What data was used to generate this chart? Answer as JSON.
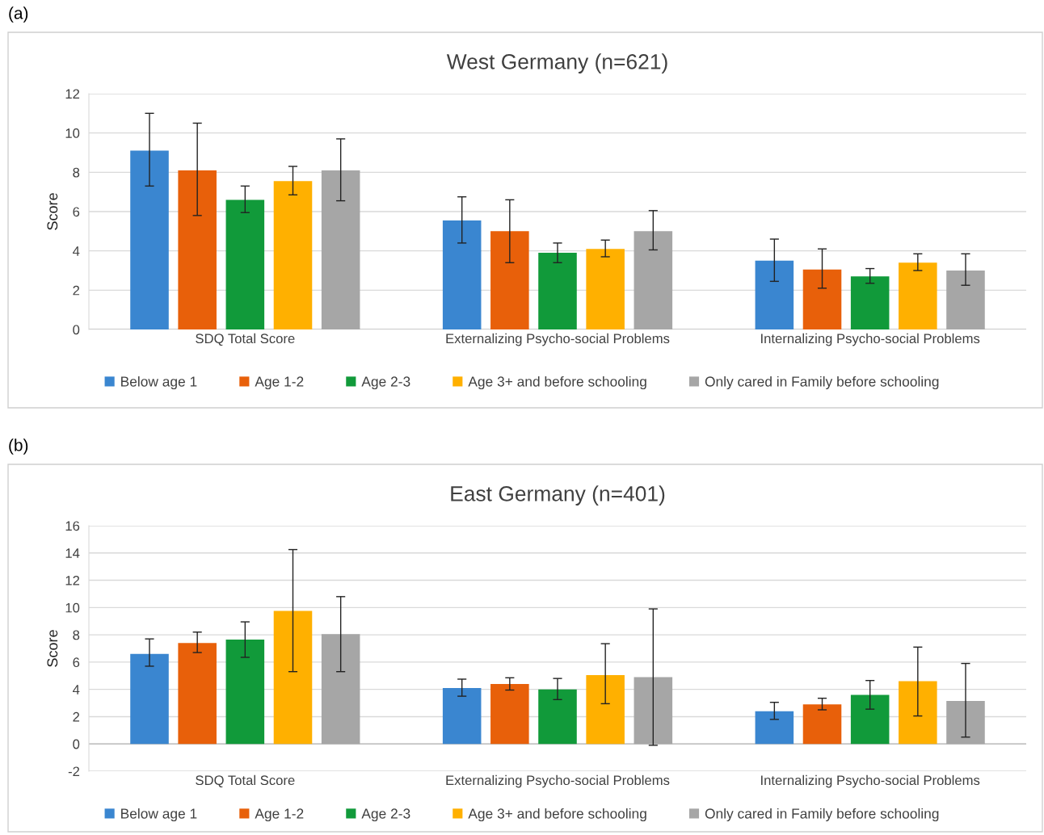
{
  "chart_data": [
    {
      "type": "bar",
      "title": "West Germany (n=621)",
      "ylabel": "Score",
      "annotations": [
        "(a)"
      ],
      "categories": [
        "SDQ Total Score",
        "Externalizing Psycho-social Problems",
        "Internalizing Psycho-social Problems"
      ],
      "ylim": [
        0,
        12
      ],
      "yticks": [
        0,
        2,
        4,
        6,
        8,
        10,
        12
      ],
      "grid": "y",
      "legend": "bottom",
      "series": [
        {
          "name": "Below age 1",
          "color": "#3a86d0",
          "values": [
            9.1,
            5.55,
            3.5
          ],
          "errors": [
            [
              7.3,
              11.0
            ],
            [
              4.4,
              6.75
            ],
            [
              2.45,
              4.6
            ]
          ]
        },
        {
          "name": "Age 1-2",
          "color": "#e8600a",
          "values": [
            8.1,
            5.0,
            3.05
          ],
          "errors": [
            [
              5.8,
              10.5
            ],
            [
              3.4,
              6.6
            ],
            [
              2.1,
              4.1
            ]
          ]
        },
        {
          "name": "Age 2-3",
          "color": "#119a3a",
          "values": [
            6.6,
            3.9,
            2.7
          ],
          "errors": [
            [
              5.95,
              7.3
            ],
            [
              3.4,
              4.4
            ],
            [
              2.35,
              3.1
            ]
          ]
        },
        {
          "name": "Age 3+ and before schooling",
          "color": "#ffb000",
          "values": [
            7.55,
            4.1,
            3.4
          ],
          "errors": [
            [
              6.85,
              8.3
            ],
            [
              3.7,
              4.55
            ],
            [
              3.0,
              3.85
            ]
          ]
        },
        {
          "name": "Only cared in Family before schooling",
          "color": "#a6a6a6",
          "values": [
            8.1,
            5.0,
            3.0
          ],
          "errors": [
            [
              6.55,
              9.7
            ],
            [
              4.05,
              6.05
            ],
            [
              2.25,
              3.85
            ]
          ]
        }
      ]
    },
    {
      "type": "bar",
      "title": "East Germany (n=401)",
      "ylabel": "Score",
      "annotations": [
        "(b)"
      ],
      "categories": [
        "SDQ Total Score",
        "Externalizing Psycho-social Problems",
        "Internalizing Psycho-social Problems"
      ],
      "ylim": [
        -2,
        16
      ],
      "yticks": [
        {
          "value": -2,
          "label": "-2"
        },
        0,
        2,
        4,
        6,
        8,
        10,
        12,
        14,
        16
      ],
      "grid": "y",
      "legend": "bottom",
      "series": [
        {
          "name": "Below age 1",
          "color": "#3a86d0",
          "values": [
            6.6,
            4.1,
            2.4
          ],
          "errors": [
            [
              5.7,
              7.7
            ],
            [
              3.5,
              4.75
            ],
            [
              1.8,
              3.05
            ]
          ]
        },
        {
          "name": "Age 1-2",
          "color": "#e8600a",
          "values": [
            7.4,
            4.4,
            2.9
          ],
          "errors": [
            [
              6.7,
              8.2
            ],
            [
              3.95,
              4.85
            ],
            [
              2.5,
              3.35
            ]
          ]
        },
        {
          "name": "Age 2-3",
          "color": "#119a3a",
          "values": [
            7.65,
            4.0,
            3.6
          ],
          "errors": [
            [
              6.35,
              8.95
            ],
            [
              3.25,
              4.8
            ],
            [
              2.55,
              4.65
            ]
          ]
        },
        {
          "name": "Age 3+ and before schooling",
          "color": "#ffb000",
          "values": [
            9.75,
            5.05,
            4.6
          ],
          "errors": [
            [
              5.3,
              14.25
            ],
            [
              2.95,
              7.35
            ],
            [
              2.05,
              7.1
            ]
          ]
        },
        {
          "name": "Only cared in Family before schooling",
          "color": "#a6a6a6",
          "values": [
            8.05,
            4.9,
            3.15
          ],
          "errors": [
            [
              5.3,
              10.8
            ],
            [
              -0.1,
              9.9
            ],
            [
              0.5,
              5.9
            ]
          ]
        }
      ]
    }
  ]
}
